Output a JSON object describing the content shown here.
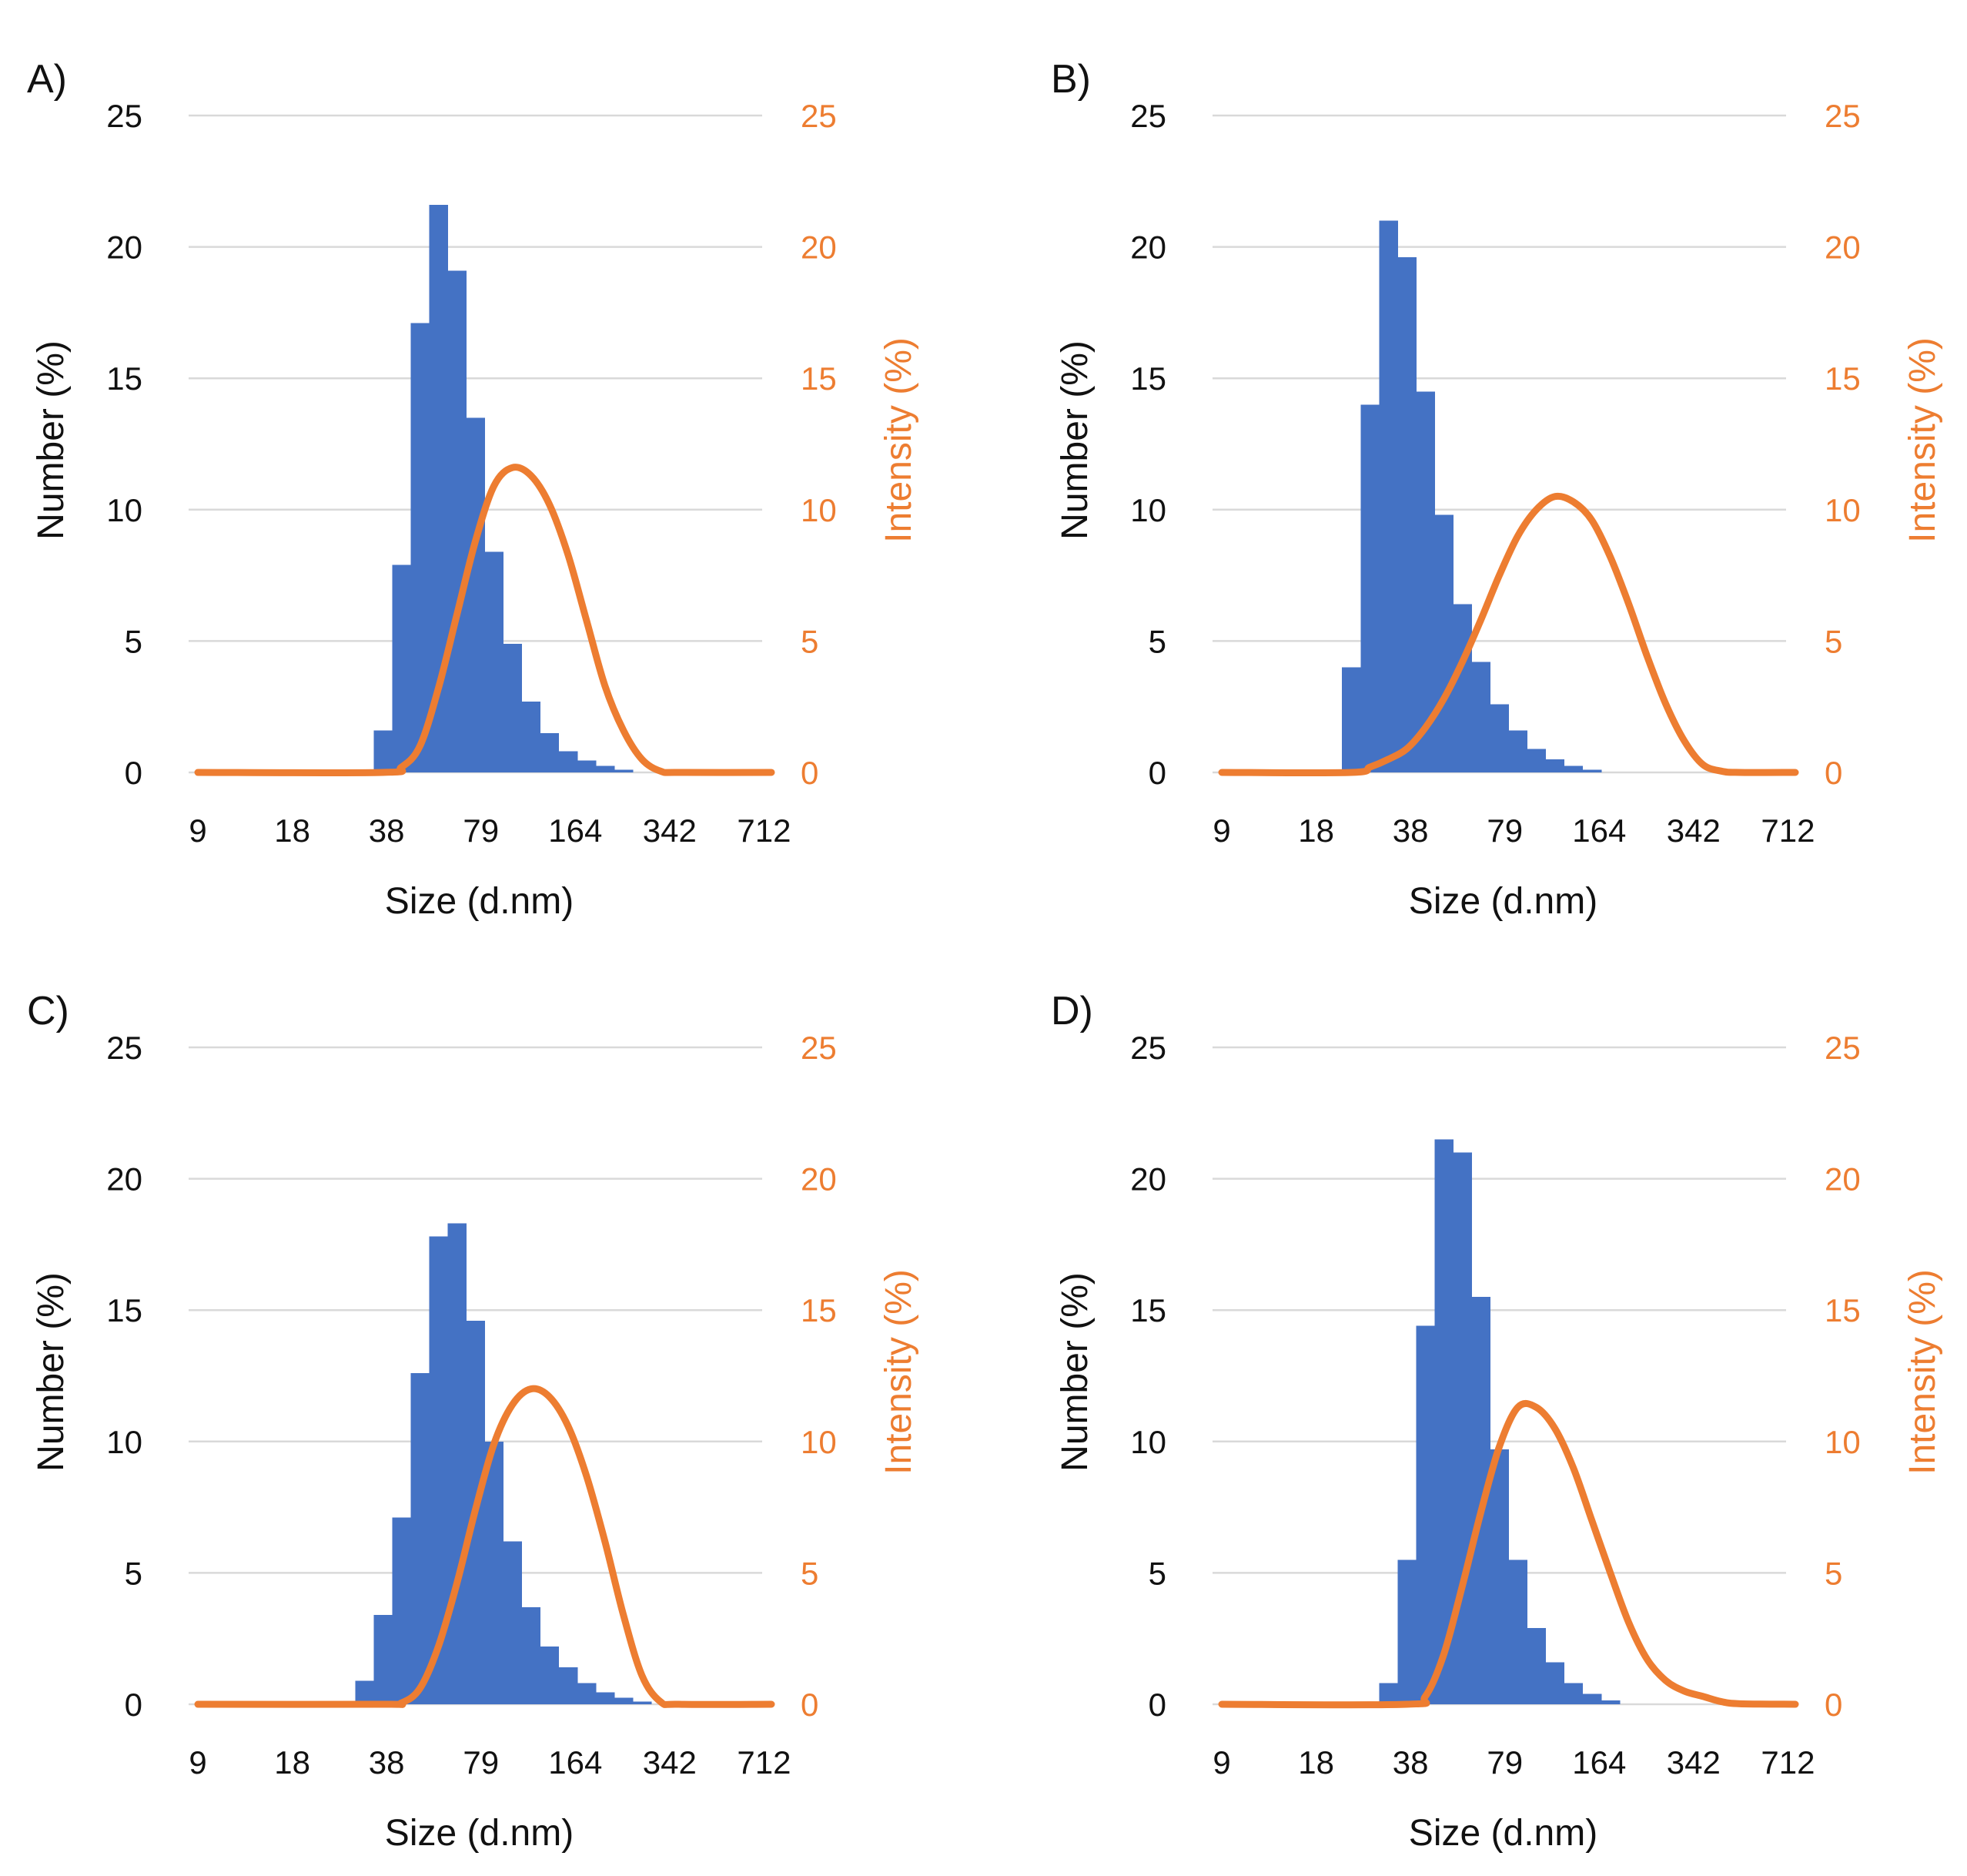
{
  "colors": {
    "number_series": "#4472C4",
    "intensity_series": "#ED7D31",
    "text": "#111111",
    "gridline": "#D9D9D9"
  },
  "chart_data": [
    {
      "panel_label": "A)",
      "type": "bar+line",
      "xlabel": "Size (d.nm)",
      "ylabel": "Number (%)",
      "ylabel_right": "Intensity (%)",
      "x_tick_labels": [
        "9",
        "18",
        "38",
        "79",
        "164",
        "342",
        "712"
      ],
      "y_ticks": [
        "0",
        "5",
        "10",
        "15",
        "20",
        "25"
      ],
      "y2_ticks": [
        "0",
        "5",
        "10",
        "15",
        "20",
        "25"
      ],
      "ylim": [
        0,
        25
      ],
      "y2lim": [
        0,
        25
      ],
      "grid": true,
      "series": [
        {
          "name": "Number (%)",
          "type": "bar",
          "axis": "left",
          "bins": [
            [
              10,
              1.6
            ],
            [
              11,
              7.9
            ],
            [
              12,
              17.1
            ],
            [
              13,
              21.6
            ],
            [
              14,
              19.1
            ],
            [
              15,
              13.5
            ],
            [
              16,
              8.4
            ],
            [
              17,
              4.9
            ],
            [
              18,
              2.7
            ],
            [
              19,
              1.5
            ],
            [
              20,
              0.8
            ],
            [
              21,
              0.45
            ],
            [
              22,
              0.25
            ],
            [
              23,
              0.1
            ]
          ]
        },
        {
          "name": "Intensity (%)",
          "type": "line",
          "axis": "right",
          "points": [
            [
              0,
              0
            ],
            [
              10,
              0
            ],
            [
              11,
              0.2
            ],
            [
              12,
              1.0
            ],
            [
              13,
              3.2
            ],
            [
              14,
              6.0
            ],
            [
              15,
              8.8
            ],
            [
              16,
              10.9
            ],
            [
              17,
              11.6
            ],
            [
              18,
              11.3
            ],
            [
              19,
              10.2
            ],
            [
              20,
              8.3
            ],
            [
              21,
              5.8
            ],
            [
              22,
              3.3
            ],
            [
              23,
              1.6
            ],
            [
              24,
              0.5
            ],
            [
              25,
              0.05
            ],
            [
              26,
              0
            ],
            [
              31,
              0
            ]
          ]
        }
      ]
    },
    {
      "panel_label": "B)",
      "type": "bar+line",
      "xlabel": "Size (d.nm)",
      "ylabel": "Number (%)",
      "ylabel_right": "Intensity (%)",
      "x_tick_labels": [
        "9",
        "18",
        "38",
        "79",
        "164",
        "342",
        "712"
      ],
      "y_ticks": [
        "0",
        "5",
        "10",
        "15",
        "20",
        "25"
      ],
      "y2_ticks": [
        "0",
        "5",
        "10",
        "15",
        "20",
        "25"
      ],
      "ylim": [
        0,
        25
      ],
      "y2lim": [
        0,
        25
      ],
      "grid": true,
      "series": [
        {
          "name": "Number (%)",
          "type": "bar",
          "axis": "left",
          "bins": [
            [
              7,
              4.0
            ],
            [
              8,
              14.0
            ],
            [
              9,
              21.0
            ],
            [
              10,
              19.6
            ],
            [
              11,
              14.5
            ],
            [
              12,
              9.8
            ],
            [
              13,
              6.4
            ],
            [
              14,
              4.2
            ],
            [
              15,
              2.6
            ],
            [
              16,
              1.6
            ],
            [
              17,
              0.9
            ],
            [
              18,
              0.5
            ],
            [
              19,
              0.25
            ],
            [
              20,
              0.1
            ]
          ]
        },
        {
          "name": "Intensity (%)",
          "type": "line",
          "axis": "right",
          "points": [
            [
              0,
              0
            ],
            [
              7,
              0
            ],
            [
              8,
              0.2
            ],
            [
              9,
              0.5
            ],
            [
              10,
              0.9
            ],
            [
              11,
              1.7
            ],
            [
              12,
              2.8
            ],
            [
              13,
              4.2
            ],
            [
              14,
              5.8
            ],
            [
              15,
              7.5
            ],
            [
              16,
              9.0
            ],
            [
              17,
              10.0
            ],
            [
              18,
              10.5
            ],
            [
              19,
              10.3
            ],
            [
              20,
              9.6
            ],
            [
              21,
              8.2
            ],
            [
              22,
              6.4
            ],
            [
              23,
              4.4
            ],
            [
              24,
              2.6
            ],
            [
              25,
              1.2
            ],
            [
              26,
              0.3
            ],
            [
              27,
              0.05
            ],
            [
              28,
              0
            ],
            [
              31,
              0
            ]
          ]
        }
      ]
    },
    {
      "panel_label": "C)",
      "type": "bar+line",
      "xlabel": "Size (d.nm)",
      "ylabel": "Number (%)",
      "ylabel_right": "Intensity (%)",
      "x_tick_labels": [
        "9",
        "18",
        "38",
        "79",
        "164",
        "342",
        "712"
      ],
      "y_ticks": [
        "0",
        "5",
        "10",
        "15",
        "20",
        "25"
      ],
      "y2_ticks": [
        "0",
        "5",
        "10",
        "15",
        "20",
        "25"
      ],
      "ylim": [
        0,
        25
      ],
      "y2lim": [
        0,
        25
      ],
      "grid": true,
      "series": [
        {
          "name": "Number (%)",
          "type": "bar",
          "axis": "left",
          "bins": [
            [
              9,
              0.9
            ],
            [
              10,
              3.4
            ],
            [
              11,
              7.1
            ],
            [
              12,
              12.6
            ],
            [
              13,
              17.8
            ],
            [
              14,
              18.3
            ],
            [
              15,
              14.6
            ],
            [
              16,
              10.0
            ],
            [
              17,
              6.2
            ],
            [
              18,
              3.7
            ],
            [
              19,
              2.2
            ],
            [
              20,
              1.4
            ],
            [
              21,
              0.8
            ],
            [
              22,
              0.45
            ],
            [
              23,
              0.25
            ],
            [
              24,
              0.1
            ]
          ]
        },
        {
          "name": "Intensity (%)",
          "type": "line",
          "axis": "right",
          "points": [
            [
              0,
              0
            ],
            [
              10,
              0
            ],
            [
              11,
              0.05
            ],
            [
              12,
              0.6
            ],
            [
              13,
              2.2
            ],
            [
              14,
              4.6
            ],
            [
              15,
              7.4
            ],
            [
              16,
              9.9
            ],
            [
              17,
              11.4
            ],
            [
              18,
              12.0
            ],
            [
              19,
              11.7
            ],
            [
              20,
              10.6
            ],
            [
              21,
              8.7
            ],
            [
              22,
              6.2
            ],
            [
              23,
              3.4
            ],
            [
              24,
              1.1
            ],
            [
              25,
              0.1
            ],
            [
              26,
              0
            ],
            [
              31,
              0
            ]
          ]
        }
      ]
    },
    {
      "panel_label": "D)",
      "type": "bar+line",
      "xlabel": "Size (d.nm)",
      "ylabel": "Number (%)",
      "ylabel_right": "Intensity (%)",
      "x_tick_labels": [
        "9",
        "18",
        "38",
        "79",
        "164",
        "342",
        "712"
      ],
      "y_ticks": [
        "0",
        "5",
        "10",
        "15",
        "20",
        "25"
      ],
      "y2_ticks": [
        "0",
        "5",
        "10",
        "15",
        "20",
        "25"
      ],
      "ylim": [
        0,
        25
      ],
      "y2lim": [
        0,
        25
      ],
      "grid": true,
      "series": [
        {
          "name": "Number (%)",
          "type": "bar",
          "axis": "left",
          "bins": [
            [
              9,
              0.8
            ],
            [
              10,
              5.5
            ],
            [
              11,
              14.4
            ],
            [
              12,
              21.5
            ],
            [
              13,
              21.0
            ],
            [
              14,
              15.5
            ],
            [
              15,
              9.7
            ],
            [
              16,
              5.5
            ],
            [
              17,
              2.9
            ],
            [
              18,
              1.6
            ],
            [
              19,
              0.8
            ],
            [
              20,
              0.4
            ],
            [
              21,
              0.15
            ]
          ]
        },
        {
          "name": "Intensity (%)",
          "type": "line",
          "axis": "right",
          "points": [
            [
              0,
              0
            ],
            [
              10,
              0
            ],
            [
              11,
              0.3
            ],
            [
              12,
              1.9
            ],
            [
              13,
              4.5
            ],
            [
              14,
              7.3
            ],
            [
              15,
              9.8
            ],
            [
              16,
              11.3
            ],
            [
              17,
              11.3
            ],
            [
              18,
              10.5
            ],
            [
              19,
              9.0
            ],
            [
              20,
              7.0
            ],
            [
              21,
              5.0
            ],
            [
              22,
              3.1
            ],
            [
              23,
              1.7
            ],
            [
              24,
              0.9
            ],
            [
              25,
              0.5
            ],
            [
              26,
              0.3
            ],
            [
              27,
              0.1
            ],
            [
              28,
              0.02
            ],
            [
              31,
              0
            ]
          ]
        }
      ]
    }
  ]
}
